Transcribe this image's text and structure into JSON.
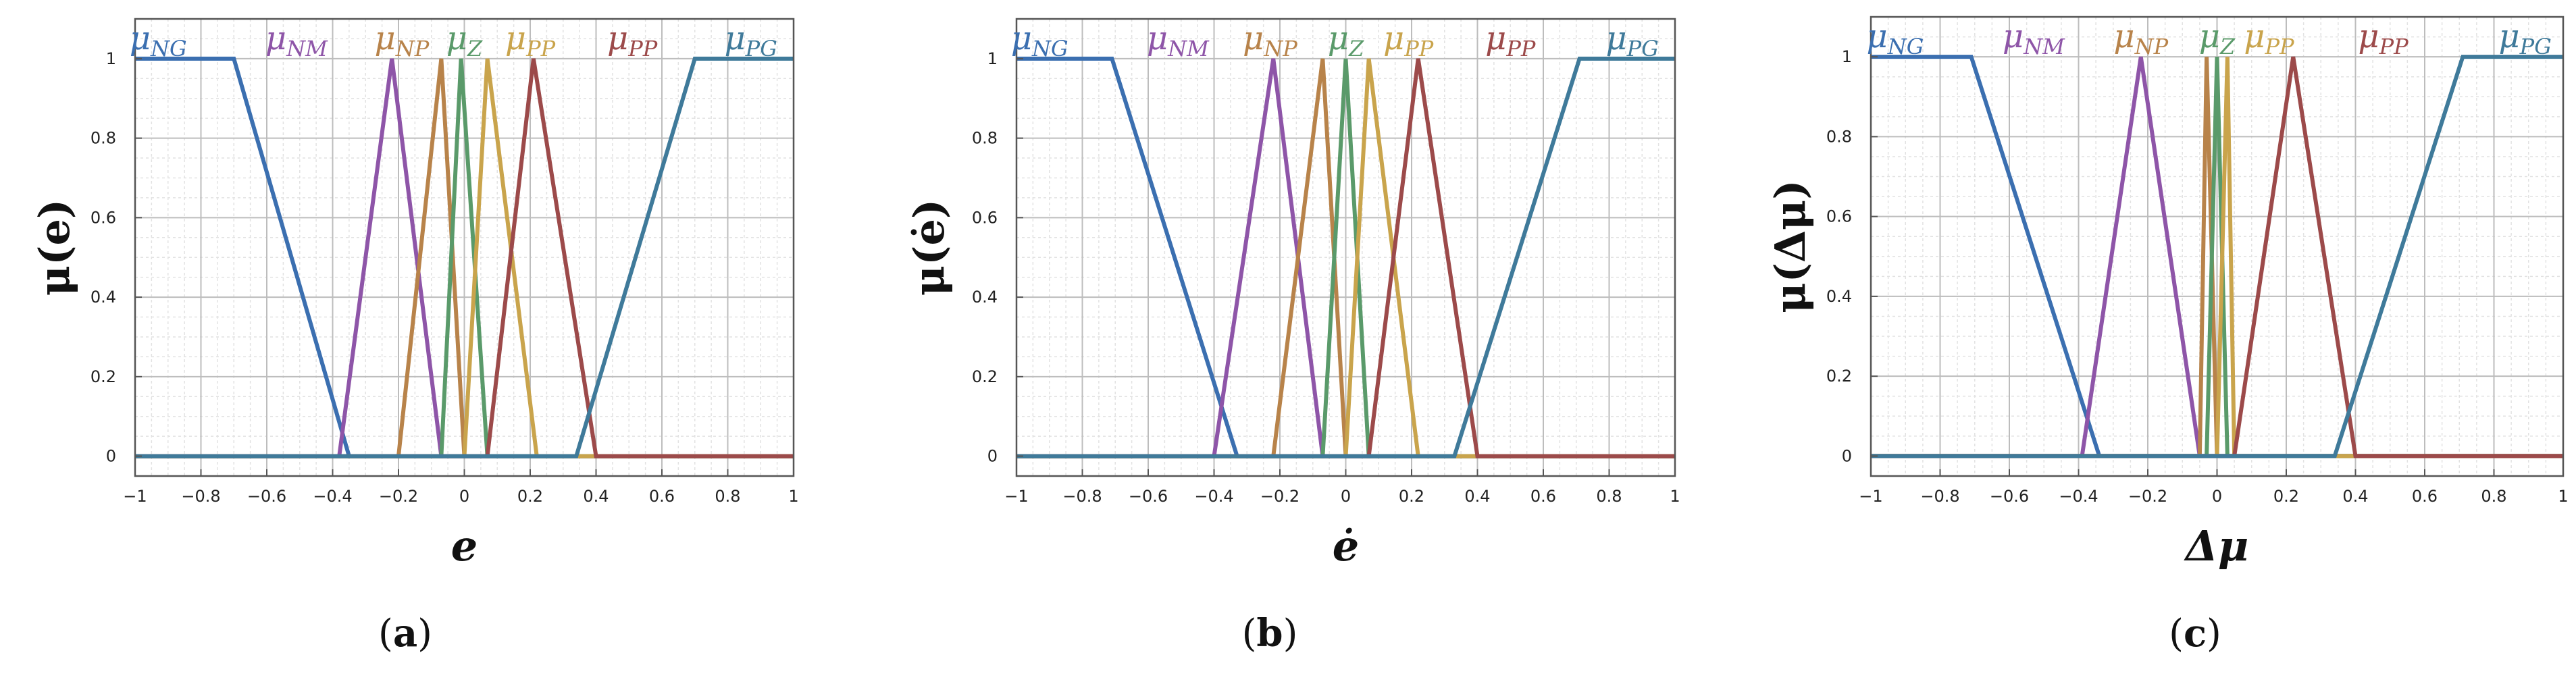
{
  "colors": {
    "NG": "#3b6fb0",
    "NM": "#8e55a8",
    "NP": "#b8834a",
    "Z": "#5a9a6a",
    "PP_a": "#c9a44c",
    "PP_b": "#9c4a4a",
    "PG": "#3f7a9a",
    "grid_major": "#bdbdbd",
    "grid_minor": "#e2e2e2",
    "frame": "#555555"
  },
  "captions": [
    "a",
    "b",
    "c"
  ],
  "chart_data": [
    {
      "type": "line",
      "xlabel": "e",
      "ylabel": "μ(e)",
      "xlim": [
        -1,
        1
      ],
      "ylim": [
        -0.05,
        1.1
      ],
      "xticks": [
        "−1",
        "−0.8",
        "−0.6",
        "−0.4",
        "−0.2",
        "0",
        "0.2",
        "0.4",
        "0.6",
        "0.8",
        "1"
      ],
      "yticks": [
        "0",
        "0.2",
        "0.4",
        "0.6",
        "0.8",
        "1"
      ],
      "legend_labels": [
        {
          "main": "μ",
          "sub": "NG",
          "color": "NG"
        },
        {
          "main": "μ",
          "sub": "NM",
          "color": "NM"
        },
        {
          "main": "μ",
          "sub": "NP",
          "color": "NP"
        },
        {
          "main": "μ",
          "sub": "Z",
          "color": "Z"
        },
        {
          "main": "μ",
          "sub": "PP",
          "color": "PP_a"
        },
        {
          "main": "μ",
          "sub": "PP",
          "color": "PP_b"
        },
        {
          "main": "μ",
          "sub": "PG",
          "color": "PG"
        }
      ],
      "series": [
        {
          "color": "NG",
          "x": [
            -1,
            -0.7,
            -0.35,
            1
          ],
          "y": [
            1,
            1,
            0,
            0
          ]
        },
        {
          "color": "NM",
          "x": [
            -1,
            -0.38,
            -0.22,
            -0.07,
            1
          ],
          "y": [
            0,
            0,
            1,
            0,
            0
          ]
        },
        {
          "color": "NP",
          "x": [
            -1,
            -0.2,
            -0.07,
            0.0,
            1
          ],
          "y": [
            0,
            0,
            1,
            0,
            0
          ]
        },
        {
          "color": "Z",
          "x": [
            -1,
            -0.07,
            -0.01,
            0.07,
            1
          ],
          "y": [
            0,
            0,
            1,
            0,
            0
          ]
        },
        {
          "color": "PP_a",
          "x": [
            -1,
            0.0,
            0.07,
            0.22,
            1
          ],
          "y": [
            0,
            0,
            1,
            0,
            0
          ]
        },
        {
          "color": "PP_b",
          "x": [
            -1,
            0.07,
            0.21,
            0.4,
            1
          ],
          "y": [
            0,
            0,
            1,
            0,
            0
          ]
        },
        {
          "color": "PG",
          "x": [
            -1,
            0.34,
            0.7,
            1
          ],
          "y": [
            0,
            0,
            1,
            1
          ]
        }
      ]
    },
    {
      "type": "line",
      "xlabel": "ė",
      "ylabel": "μ(ė)",
      "xlim": [
        -1,
        1
      ],
      "ylim": [
        -0.05,
        1.1
      ],
      "xticks": [
        "−1",
        "−0.8",
        "−0.6",
        "−0.4",
        "−0.2",
        "0",
        "0.2",
        "0.4",
        "0.6",
        "0.8",
        "1"
      ],
      "yticks": [
        "0",
        "0.2",
        "0.4",
        "0.6",
        "0.8",
        "1"
      ],
      "legend_labels": [
        {
          "main": "μ",
          "sub": "NG",
          "color": "NG"
        },
        {
          "main": "μ",
          "sub": "NM",
          "color": "NM"
        },
        {
          "main": "μ",
          "sub": "NP",
          "color": "NP"
        },
        {
          "main": "μ",
          "sub": "Z",
          "color": "Z"
        },
        {
          "main": "μ",
          "sub": "PP",
          "color": "PP_a"
        },
        {
          "main": "μ",
          "sub": "PP",
          "color": "PP_b"
        },
        {
          "main": "μ",
          "sub": "PG",
          "color": "PG"
        }
      ],
      "series": [
        {
          "color": "NG",
          "x": [
            -1,
            -0.71,
            -0.33,
            1
          ],
          "y": [
            1,
            1,
            0,
            0
          ]
        },
        {
          "color": "NM",
          "x": [
            -1,
            -0.4,
            -0.22,
            -0.07,
            1
          ],
          "y": [
            0,
            0,
            1,
            0,
            0
          ]
        },
        {
          "color": "NP",
          "x": [
            -1,
            -0.22,
            -0.07,
            0.0,
            1
          ],
          "y": [
            0,
            0,
            1,
            0,
            0
          ]
        },
        {
          "color": "Z",
          "x": [
            -1,
            -0.07,
            0.0,
            0.07,
            1
          ],
          "y": [
            0,
            0,
            1,
            0,
            0
          ]
        },
        {
          "color": "PP_a",
          "x": [
            -1,
            0.0,
            0.07,
            0.22,
            1
          ],
          "y": [
            0,
            0,
            1,
            0,
            0
          ]
        },
        {
          "color": "PP_b",
          "x": [
            -1,
            0.07,
            0.22,
            0.4,
            1
          ],
          "y": [
            0,
            0,
            1,
            0,
            0
          ]
        },
        {
          "color": "PG",
          "x": [
            -1,
            0.33,
            0.71,
            1
          ],
          "y": [
            0,
            0,
            1,
            1
          ]
        }
      ]
    },
    {
      "type": "line",
      "xlabel": "Δμ",
      "ylabel": "μ(Δμ)",
      "xlim": [
        -1,
        1
      ],
      "ylim": [
        -0.05,
        1.1
      ],
      "xticks": [
        "−1",
        "−0.8",
        "−0.6",
        "−0.4",
        "−0.2",
        "0",
        "0.2",
        "0.4",
        "0.6",
        "0.8",
        "1"
      ],
      "yticks": [
        "0",
        "0.2",
        "0.4",
        "0.6",
        "0.8",
        "1"
      ],
      "legend_labels": [
        {
          "main": "μ",
          "sub": "NG",
          "color": "NG"
        },
        {
          "main": "μ",
          "sub": "NM",
          "color": "NM"
        },
        {
          "main": "μ",
          "sub": "NP",
          "color": "NP"
        },
        {
          "main": "μ",
          "sub": "Z",
          "color": "Z"
        },
        {
          "main": "μ",
          "sub": "PP",
          "color": "PP_a"
        },
        {
          "main": "μ",
          "sub": "PP",
          "color": "PP_b"
        },
        {
          "main": "μ",
          "sub": "PG",
          "color": "PG"
        }
      ],
      "series": [
        {
          "color": "NG",
          "x": [
            -1,
            -0.71,
            -0.34,
            1
          ],
          "y": [
            1,
            1,
            0,
            0
          ]
        },
        {
          "color": "NM",
          "x": [
            -1,
            -0.39,
            -0.22,
            -0.05,
            1
          ],
          "y": [
            0,
            0,
            1,
            0,
            0
          ]
        },
        {
          "color": "NP",
          "x": [
            -1,
            -0.05,
            -0.03,
            0.0,
            1
          ],
          "y": [
            0,
            0,
            1,
            0,
            0
          ]
        },
        {
          "color": "Z",
          "x": [
            -1,
            -0.03,
            0.0,
            0.03,
            1
          ],
          "y": [
            0,
            0,
            1,
            0,
            0
          ]
        },
        {
          "color": "PP_a",
          "x": [
            -1,
            0.0,
            0.03,
            0.05,
            1
          ],
          "y": [
            0,
            0,
            1,
            0,
            0
          ]
        },
        {
          "color": "PP_b",
          "x": [
            -1,
            0.05,
            0.22,
            0.4,
            1
          ],
          "y": [
            0,
            0,
            1,
            0,
            0
          ]
        },
        {
          "color": "PG",
          "x": [
            -1,
            0.34,
            0.71,
            1
          ],
          "y": [
            0,
            0,
            1,
            1
          ]
        }
      ]
    }
  ]
}
